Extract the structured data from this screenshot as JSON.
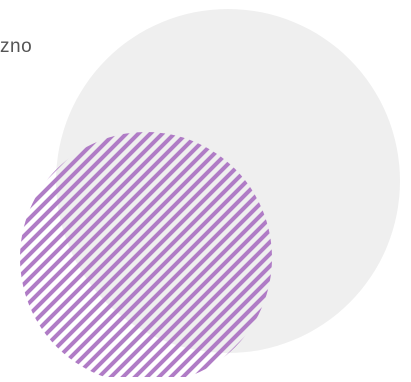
{
  "text_fragment": "zno",
  "colors": {
    "background": "#ffffff",
    "circle_fill": "#efefef",
    "stripe": "#b07cc6",
    "text": "#555555"
  },
  "decorations": {
    "large_circle_icon": "light-gray-circle",
    "striped_circle_icon": "diagonal-purple-stripes-circle"
  }
}
